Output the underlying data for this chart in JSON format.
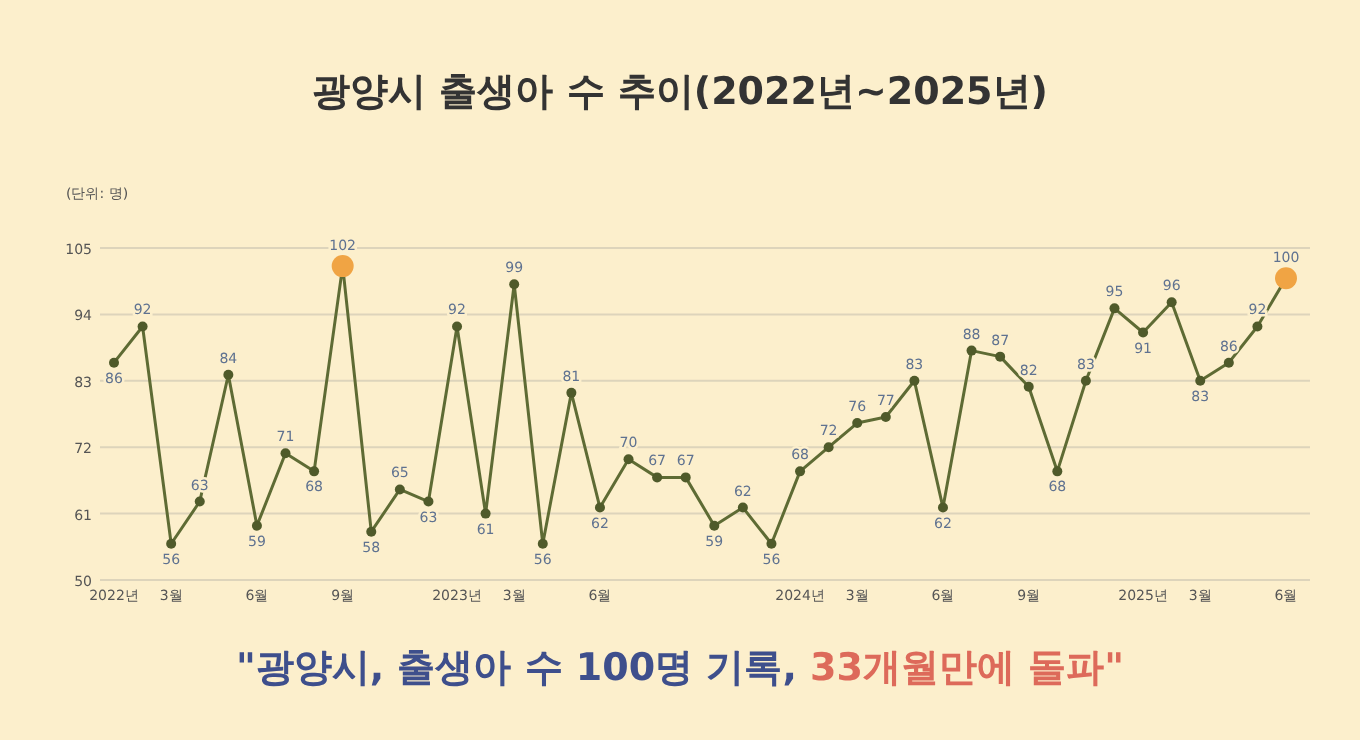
{
  "chart_data": {
    "type": "line",
    "title": "광양시 출생아 수 추이(2022년~2025년)",
    "ylabel": "(단위: 명)",
    "categories": [
      "2022년",
      null,
      "3월",
      null,
      null,
      "6월",
      null,
      null,
      "9월",
      null,
      null,
      null,
      "2023년",
      null,
      "3월",
      null,
      null,
      "6월",
      null,
      null,
      null,
      null,
      null,
      null,
      "2024년",
      null,
      "3월",
      null,
      null,
      "6월",
      null,
      null,
      "9월",
      null,
      null,
      null,
      "2025년",
      null,
      "3월",
      null,
      null,
      "6월"
    ],
    "series": [
      {
        "color": "#5e6b34",
        "colors": [
          "#4f5a2a",
          "#4f5a2a",
          "#4f5a2a",
          "#4f5a2a",
          "#4f5a2a",
          "#4f5a2a",
          "#4f5a2a",
          "#4f5a2a",
          "#f0a444",
          "#4f5a2a",
          "#4f5a2a",
          "#4f5a2a",
          "#4f5a2a",
          "#4f5a2a",
          "#4f5a2a",
          "#4f5a2a",
          "#4f5a2a",
          "#4f5a2a",
          "#4f5a2a",
          "#4f5a2a",
          "#4f5a2a",
          "#4f5a2a",
          "#4f5a2a",
          "#4f5a2a",
          "#4f5a2a",
          "#4f5a2a",
          "#4f5a2a",
          "#4f5a2a",
          "#4f5a2a",
          "#4f5a2a",
          "#4f5a2a",
          "#4f5a2a",
          "#4f5a2a",
          "#4f5a2a",
          "#4f5a2a",
          "#4f5a2a",
          "#4f5a2a",
          "#4f5a2a",
          "#4f5a2a",
          "#4f5a2a",
          "#4f5a2a",
          "#f0a444"
        ],
        "values": [
          86,
          92,
          56,
          63,
          84,
          59,
          71,
          68,
          102,
          58,
          65,
          63,
          92,
          61,
          99,
          56,
          81,
          62,
          70,
          67,
          67,
          59,
          62,
          56,
          68,
          72,
          76,
          77,
          83,
          62,
          88,
          87,
          82,
          68,
          83,
          95,
          91,
          96,
          83,
          86,
          92,
          100
        ]
      }
    ],
    "ylim": [
      50,
      105
    ],
    "yticks": [
      50,
      61,
      72,
      83,
      94,
      105
    ],
    "grid": "y",
    "marker": "circle",
    "data_labels": true,
    "annotations": [
      "\"광양시, 출생아 수 100명 기록, ",
      "33개월만에 돌파\""
    ]
  }
}
